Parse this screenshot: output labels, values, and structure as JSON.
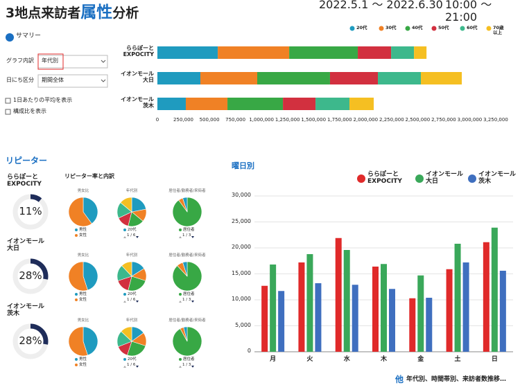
{
  "header": {
    "title_parts": [
      "3地点来訪者",
      "属性",
      "分析"
    ],
    "period": "2022.5.1 ～ 2022.6.30",
    "hours": "10:00 ～ 21:00"
  },
  "sidebar": {
    "summary": "サマリー",
    "breakdown_label": "グラフ内訳",
    "breakdown_value": "年代別",
    "date_label": "日にち区分",
    "date_value": "期間全体",
    "checkboxes": [
      "1日あたりの平均を表示",
      "構成比を表示"
    ]
  },
  "chart_data": [
    {
      "type": "stacked_bar_h",
      "categories": [
        "ららぽーと\nEXPOCITY",
        "イオンモール\n大日",
        "イオンモール\n茨木"
      ],
      "series": [
        {
          "name": "20代",
          "color": "#1f9bbf",
          "values": [
            580000,
            413000,
            273000
          ]
        },
        {
          "name": "30代",
          "color": "#f08125",
          "values": [
            686000,
            546000,
            400000
          ]
        },
        {
          "name": "40代",
          "color": "#38a845",
          "values": [
            659000,
            699000,
            533000
          ]
        },
        {
          "name": "50代",
          "color": "#d2303f",
          "values": [
            320000,
            460000,
            313000
          ]
        },
        {
          "name": "60代",
          "color": "#3db88c",
          "values": [
            220000,
            413000,
            326000
          ]
        },
        {
          "name": "70歳\n以上",
          "color": "#f5bf22",
          "values": [
            120000,
            393000,
            233000
          ]
        }
      ],
      "xlim": [
        0,
        3250000
      ],
      "xticks": [
        0,
        {
          "value": 250000,
          "label": "250,000"
        },
        {
          "value": 500000,
          "label": "500,000"
        },
        {
          "value": 750000,
          "label": "750,000"
        },
        {
          "value": 1000000,
          "label": "1,000,000"
        },
        {
          "value": 1250000,
          "label": "1,250,000"
        },
        {
          "value": 1500000,
          "label": "1,500,000"
        },
        {
          "value": 1750000,
          "label": "1,750,000"
        },
        {
          "value": 2000000,
          "label": "2,000,000"
        },
        {
          "value": 2250000,
          "label": "2,250,000"
        },
        {
          "value": 2500000,
          "label": "2,500,000"
        },
        {
          "value": 2750000,
          "label": "2,750,000"
        },
        {
          "value": 3000000,
          "label": "3,000,000"
        },
        {
          "value": 3250000,
          "label": "3,250,000"
        }
      ],
      "grid": false,
      "legend": "top-right"
    },
    {
      "type": "bar",
      "title": "曜日別",
      "categories": [
        "月",
        "火",
        "水",
        "木",
        "金",
        "土",
        "日"
      ],
      "series": [
        {
          "name": "ららぽーと\nEXPOCITY",
          "color": "#e02a2a",
          "values": [
            12700,
            17200,
            21900,
            16400,
            10300,
            15900,
            21100
          ]
        },
        {
          "name": "イオンモール\n大日",
          "color": "#3aa85a",
          "values": [
            16800,
            18800,
            19600,
            16900,
            14700,
            20800,
            23900
          ]
        },
        {
          "name": "イオンモール\n茨木",
          "color": "#3f6fbf",
          "values": [
            11700,
            13200,
            12900,
            12100,
            10400,
            17200,
            15600
          ]
        }
      ],
      "ylim": [
        0,
        30000
      ],
      "yticks": [
        0,
        {
          "value": 5000,
          "label": "5,000"
        },
        {
          "value": 10000,
          "label": "10,000"
        },
        {
          "value": 15000,
          "label": "15,000"
        },
        {
          "value": 20000,
          "label": "20,000"
        },
        {
          "value": 25000,
          "label": "25,000"
        },
        {
          "value": 30000,
          "label": "30,000"
        }
      ],
      "grid": true,
      "legend": "top"
    }
  ],
  "repeater": {
    "title": "リピーター",
    "subtitle": "リピーター率と内訳",
    "pies": [
      {
        "title": "男女比",
        "colors": [
          "#1f9bbf",
          "#f08125"
        ],
        "legend": [
          "男性",
          "女性"
        ]
      },
      {
        "title": "年代別",
        "colors": [
          "#1f9bbf",
          "#f08125",
          "#38a845",
          "#d2303f",
          "#3db88c",
          "#f5bf22"
        ],
        "legend": [
          "20代"
        ],
        "pager": "1 / 6"
      },
      {
        "title": "居住者/勤務者/来街者",
        "colors": [
          "#38a845",
          "#f08125",
          "#1f9bbf"
        ],
        "legend": [
          "居住者"
        ],
        "pager": "1 / 3"
      }
    ],
    "stores": [
      {
        "name": "ららぽーと\nEXPOCITY",
        "rate": 11,
        "rate_label": "11%",
        "pies": [
          [
            40,
            60
          ],
          [
            22,
            14,
            18,
            14,
            18,
            14
          ],
          [
            90,
            5,
            5
          ]
        ]
      },
      {
        "name": "イオンモール\n大日",
        "rate": 28,
        "rate_label": "28%",
        "pies": [
          [
            45,
            55
          ],
          [
            16,
            14,
            24,
            16,
            18,
            12
          ],
          [
            88,
            7,
            5
          ]
        ]
      },
      {
        "name": "イオンモール\n茨木",
        "rate": 28,
        "rate_label": "28%",
        "pies": [
          [
            45,
            55
          ],
          [
            15,
            15,
            25,
            14,
            18,
            13
          ],
          [
            92,
            4,
            4
          ]
        ]
      }
    ]
  },
  "footer": {
    "mark": "他",
    "text": "年代別、時間帯別、来訪者数推移…"
  }
}
